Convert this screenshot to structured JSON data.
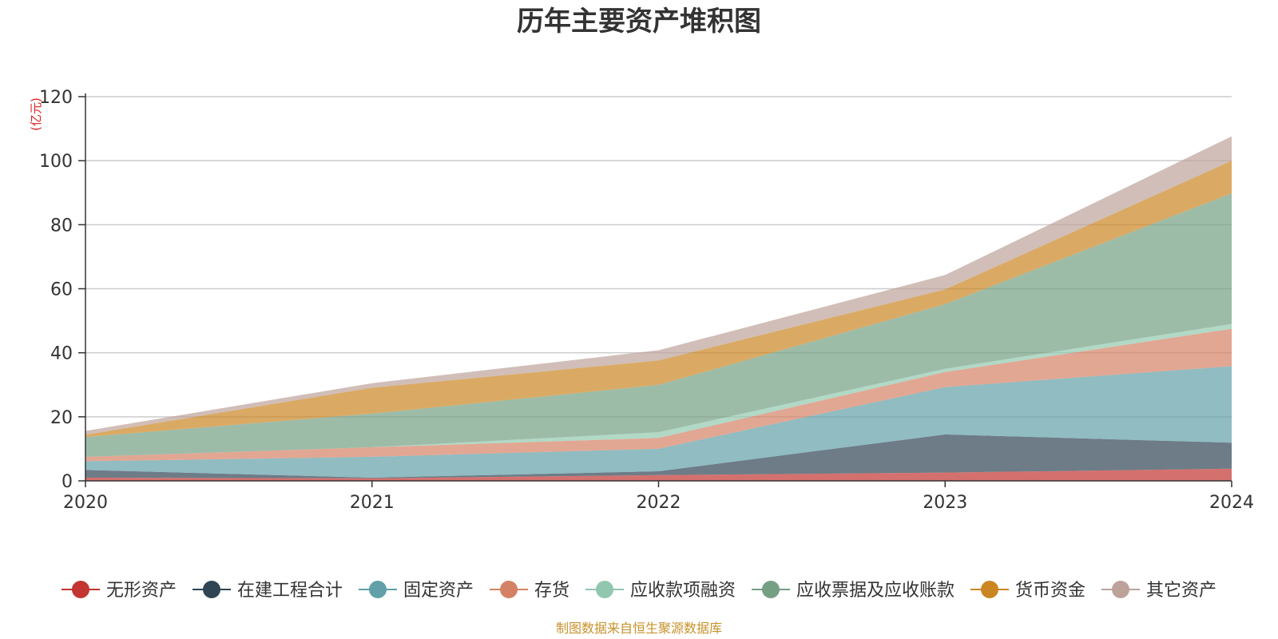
{
  "chart_data": {
    "type": "area",
    "stacked": true,
    "title": "历年主要资产堆积图",
    "unit_label": "(亿元)",
    "x": [
      "2020",
      "2021",
      "2022",
      "2023",
      "2024"
    ],
    "ylim": [
      0,
      120
    ],
    "yticks": [
      "0",
      "20",
      "40",
      "60",
      "80",
      "100",
      "120"
    ],
    "grid": true,
    "legend_position": "bottom",
    "series": [
      {
        "name": "无形资产",
        "color": "#c23531",
        "values": [
          1.0,
          0.8,
          1.8,
          2.6,
          3.8
        ]
      },
      {
        "name": "在建工程合计",
        "color": "#2f4554",
        "values": [
          2.4,
          0.2,
          1.2,
          11.9,
          8.1
        ]
      },
      {
        "name": "固定资产",
        "color": "#61a0a8",
        "values": [
          2.7,
          6.5,
          7.0,
          14.8,
          23.9
        ]
      },
      {
        "name": "存货",
        "color": "#d48265",
        "values": [
          1.4,
          3.0,
          3.4,
          4.7,
          11.7
        ]
      },
      {
        "name": "应收款项融资",
        "color": "#91c7ae",
        "values": [
          0.0,
          0.0,
          1.8,
          1.0,
          1.5
        ]
      },
      {
        "name": "应收票据及应收账款",
        "color": "#749f83",
        "values": [
          6.2,
          10.5,
          14.8,
          20.2,
          40.8
        ]
      },
      {
        "name": "货币资金",
        "color": "#ca8622",
        "values": [
          0.7,
          8.1,
          7.6,
          4.6,
          10.2
        ]
      },
      {
        "name": "其它资产",
        "color": "#bda29a",
        "values": [
          1.2,
          1.4,
          3.2,
          4.5,
          7.6
        ]
      }
    ]
  },
  "source_note": "制图数据来自恒生聚源数据库"
}
